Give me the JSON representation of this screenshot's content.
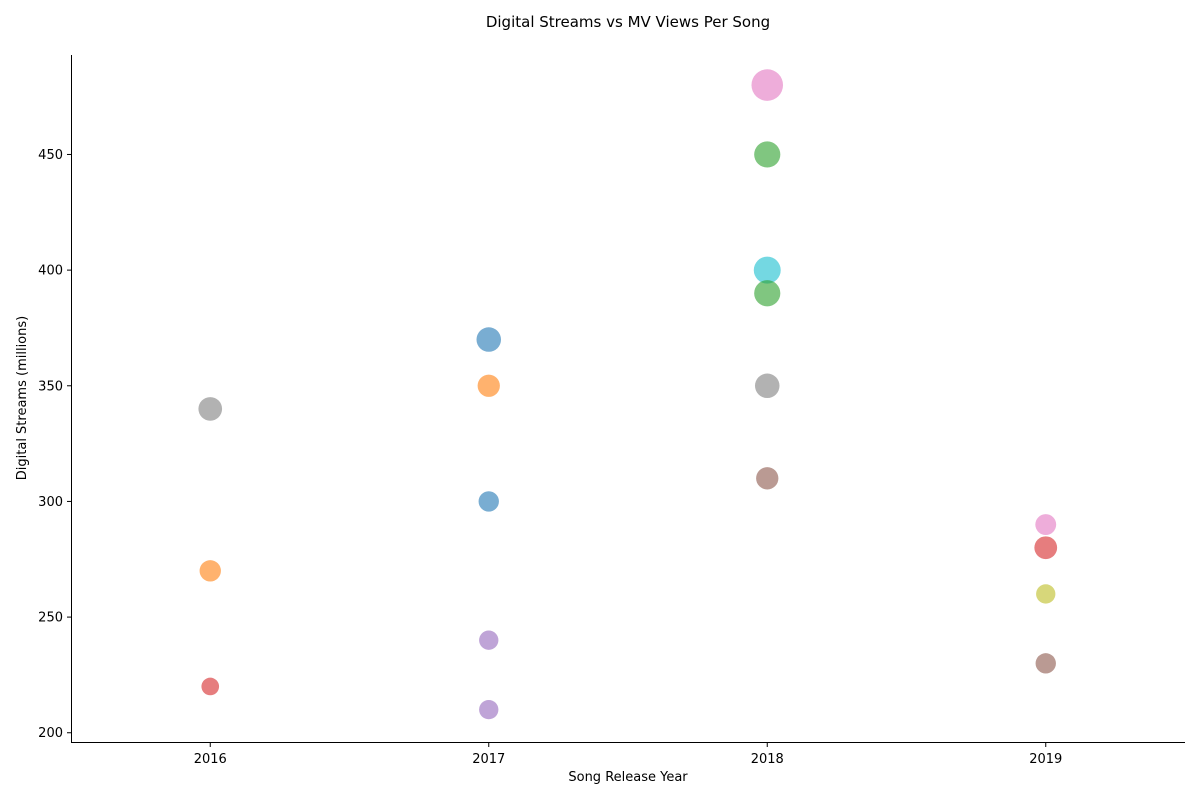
{
  "chart_data": {
    "type": "scatter",
    "title": "Digital Streams vs MV Views Per Song",
    "xlabel": "Song Release Year",
    "ylabel": "Digital Streams (millions)",
    "xlim": [
      2015.5,
      2019.5
    ],
    "ylim": [
      196,
      493
    ],
    "xticks": [
      2016,
      2017,
      2018,
      2019
    ],
    "xtick_labels": [
      "2016",
      "2017",
      "2018",
      "2019"
    ],
    "yticks": [
      200,
      250,
      300,
      350,
      400,
      450
    ],
    "ytick_labels": [
      "200",
      "250",
      "300",
      "350",
      "400",
      "450"
    ],
    "grid": false,
    "legend": "none",
    "size_encodes": "MV views (relative)",
    "points": [
      {
        "x": 2017,
        "y": 370,
        "size": 290,
        "color": "#1f77b4"
      },
      {
        "x": 2017,
        "y": 350,
        "size": 240,
        "color": "#ff7f0e"
      },
      {
        "x": 2018,
        "y": 450,
        "size": 330,
        "color": "#2ca02c"
      },
      {
        "x": 2019,
        "y": 280,
        "size": 250,
        "color": "#d62728"
      },
      {
        "x": 2017,
        "y": 240,
        "size": 180,
        "color": "#9467bd"
      },
      {
        "x": 2019,
        "y": 230,
        "size": 200,
        "color": "#8c564b"
      },
      {
        "x": 2018,
        "y": 480,
        "size": 480,
        "color": "#e377c2"
      },
      {
        "x": 2016,
        "y": 340,
        "size": 270,
        "color": "#7f7f7f"
      },
      {
        "x": 2019,
        "y": 260,
        "size": 180,
        "color": "#bcbd22"
      },
      {
        "x": 2018,
        "y": 400,
        "size": 350,
        "color": "#17becf"
      },
      {
        "x": 2017,
        "y": 300,
        "size": 200,
        "color": "#1f77b4"
      },
      {
        "x": 2016,
        "y": 270,
        "size": 220,
        "color": "#ff7f0e"
      },
      {
        "x": 2018,
        "y": 390,
        "size": 330,
        "color": "#2ca02c"
      },
      {
        "x": 2016,
        "y": 220,
        "size": 150,
        "color": "#d62728"
      },
      {
        "x": 2017,
        "y": 210,
        "size": 180,
        "color": "#9467bd"
      },
      {
        "x": 2018,
        "y": 310,
        "size": 240,
        "color": "#8c564b"
      },
      {
        "x": 2019,
        "y": 290,
        "size": 210,
        "color": "#e377c2"
      },
      {
        "x": 2018,
        "y": 350,
        "size": 290,
        "color": "#7f7f7f"
      }
    ]
  }
}
